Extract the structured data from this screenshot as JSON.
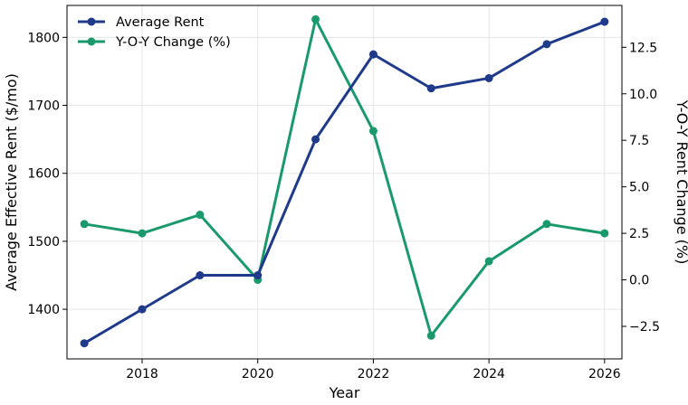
{
  "chart_data": {
    "type": "line",
    "x": [
      2017,
      2018,
      2019,
      2020,
      2021,
      2022,
      2023,
      2024,
      2025,
      2026
    ],
    "xlabel": "Year",
    "ylabel": "Average Effective Rent ($/mo)",
    "y2label": "Y-O-Y Rent Change (%)",
    "xlim": [
      2016.7,
      2026.3
    ],
    "ylim": [
      1327,
      1847
    ],
    "y2lim": [
      -4.25,
      14.75
    ],
    "xticks": [
      2018,
      2020,
      2022,
      2024,
      2026
    ],
    "yticks": [
      1400,
      1500,
      1600,
      1700,
      1800
    ],
    "y2ticks": [
      -2.5,
      0.0,
      2.5,
      5.0,
      7.5,
      10.0,
      12.5
    ],
    "xtick_labels": [
      "2018",
      "2020",
      "2022",
      "2024",
      "2026"
    ],
    "ytick_labels": [
      "1400",
      "1500",
      "1600",
      "1700",
      "1800"
    ],
    "y2tick_labels": [
      "−2.5",
      "0.0",
      "2.5",
      "5.0",
      "7.5",
      "10.0",
      "12.5"
    ],
    "grid": true,
    "legend_position": "top-left",
    "series": [
      {
        "name": "Average Rent",
        "axis": "left",
        "color": "#1f3a8a",
        "values": [
          1350,
          1400,
          1450,
          1450,
          1650,
          1775,
          1725,
          1740,
          1790,
          1823
        ]
      },
      {
        "name": "Y-O-Y Change (%)",
        "axis": "right",
        "color": "#1a9a6c",
        "values": [
          3.0,
          2.5,
          3.5,
          0.0,
          14.0,
          8.0,
          -3.0,
          1.0,
          3.0,
          2.5
        ]
      }
    ]
  }
}
